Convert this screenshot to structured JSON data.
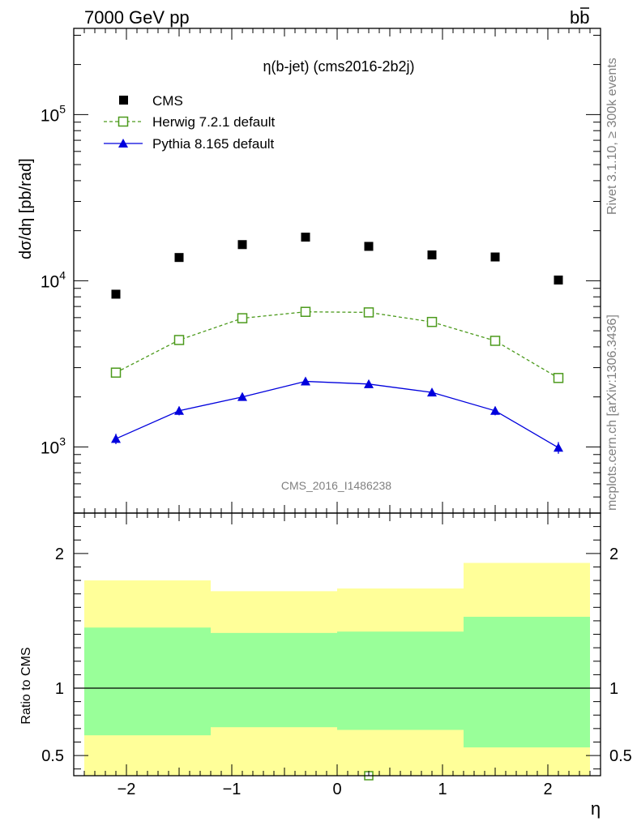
{
  "header": {
    "left": "7000 GeV pp",
    "right_base": "b",
    "right_bar": "b"
  },
  "side": {
    "rivet": "Rivet 3.1.10, ≥ 300k events",
    "mcplots": "mcplots.cern.ch [arXiv:1306.3436]"
  },
  "chart_data": [
    {
      "type": "scatter",
      "title": "η(b-jet) (cms2016-2b2j)",
      "ylabel": "dσ/dη [pb/rad]",
      "yscale": "log",
      "ylim": [
        400,
        330000
      ],
      "xlim": [
        -2.5,
        2.5
      ],
      "watermark": "CMS_2016_I1486238",
      "legend_position": "top-left",
      "y_ticks": [
        {
          "value": 1000,
          "base": "10",
          "exp": "3"
        },
        {
          "value": 10000,
          "base": "10",
          "exp": "4"
        },
        {
          "value": 100000,
          "base": "10",
          "exp": "5"
        }
      ],
      "x": [
        -2.1,
        -1.5,
        -0.9,
        -0.3,
        0.3,
        0.9,
        1.5,
        2.1
      ],
      "series": [
        {
          "name": "CMS",
          "color": "#000000",
          "marker": "filled-square",
          "line": "none",
          "values": [
            8300,
            13800,
            16500,
            18300,
            16100,
            14300,
            13900,
            10100
          ]
        },
        {
          "name": "Herwig 7.2.1 default",
          "color": "#4c9a1c",
          "marker": "open-square",
          "line": "dashed",
          "values": [
            2800,
            4400,
            5950,
            6500,
            6450,
            5650,
            4350,
            2600
          ],
          "errors": [
            40,
            60,
            70,
            80,
            80,
            70,
            60,
            40
          ]
        },
        {
          "name": "Pythia 8.165 default",
          "color": "#0000dd",
          "marker": "filled-triangle",
          "line": "solid",
          "values": [
            1120,
            1650,
            2000,
            2480,
            2390,
            2130,
            1650,
            990
          ],
          "errors": [
            80,
            100,
            100,
            120,
            110,
            110,
            100,
            80
          ]
        }
      ]
    },
    {
      "type": "area",
      "ylabel": "Ratio to CMS",
      "xlabel": "η",
      "ylim": [
        0.35,
        2.3
      ],
      "xlim": [
        -2.5,
        2.5
      ],
      "x_ticks": [
        "−2",
        "−1",
        "0",
        "1",
        "2"
      ],
      "x_tick_values": [
        -2,
        -1,
        0,
        1,
        2
      ],
      "y_ticks": [
        "0.5",
        "1",
        "2"
      ],
      "y_tick_values": [
        0.5,
        1,
        2
      ],
      "bands": {
        "edges": [
          -2.4,
          -1.2,
          0,
          1.2,
          2.4
        ],
        "yellow_low": [
          0.35,
          0.35,
          0.35,
          0.35
        ],
        "yellow_high": [
          1.8,
          1.72,
          1.74,
          1.93
        ],
        "green_low": [
          0.65,
          0.71,
          0.69,
          0.56
        ],
        "green_high": [
          1.45,
          1.41,
          1.42,
          1.53
        ],
        "yellow_color": "#ffff99",
        "green_color": "#99ff99"
      },
      "herwig_marker": {
        "x": 0.3,
        "y": 0.35
      }
    }
  ]
}
